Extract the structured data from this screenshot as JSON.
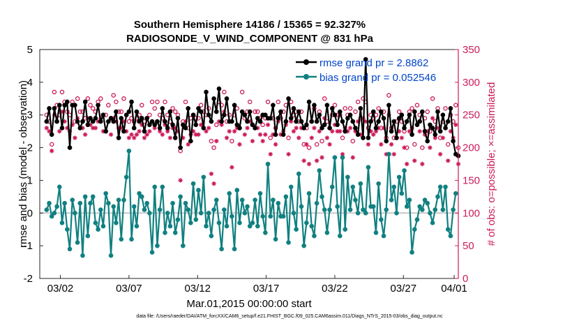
{
  "chart_data": {
    "type": "line",
    "title": "Southern Hemisphere 14186 / 15365 = 92.327%",
    "subtitle": "RADIOSONDE_V_WIND_COMPONENT @ 831 hPa",
    "xlabel": "Mar.01,2015 00:00:00 start",
    "ylabel": "rmse and bias (model - observation)",
    "ylabel_right": "# of obs: o=possible; ×=assimilated",
    "xlim": [
      0.5,
      31
    ],
    "ylim": [
      -2,
      5
    ],
    "ylim_right": [
      0,
      350
    ],
    "x_ticks": [
      {
        "x": 2,
        "label": "03/02"
      },
      {
        "x": 7,
        "label": "03/07"
      },
      {
        "x": 12,
        "label": "03/12"
      },
      {
        "x": 17,
        "label": "03/17"
      },
      {
        "x": 22,
        "label": "03/22"
      },
      {
        "x": 27,
        "label": "03/27"
      },
      {
        "x": 32,
        "label": "04/01"
      }
    ],
    "y_ticks": [
      "-2",
      "-1",
      "0",
      "1",
      "2",
      "3",
      "4",
      "5"
    ],
    "y_ticks_right": [
      "0",
      "50",
      "100",
      "150",
      "200",
      "250",
      "300",
      "350"
    ],
    "colors": {
      "rmse": "#000000",
      "bias": "#118080",
      "obs": "#cc1a5a",
      "zero": "#c8c8c8"
    },
    "legend": [
      {
        "key": "rmse",
        "label": "rmse grand pr = 2.8862"
      },
      {
        "key": "bias",
        "label": "bias grand pr = 0.052546"
      }
    ],
    "series": [
      {
        "name": "rmse",
        "values": [
          2.8,
          3.2,
          2.4,
          3.2,
          2.8,
          3.3,
          2.6,
          3.3,
          3.4,
          2.0,
          3.3,
          3.3,
          2.8,
          2.6,
          2.8,
          3.4,
          2.7,
          2.9,
          2.8,
          2.9,
          3.3,
          2.8,
          3.0,
          2.5,
          2.8,
          2.9,
          2.8,
          3.1,
          2.3,
          2.9,
          2.5,
          3.0,
          3.1,
          3.4,
          2.6,
          3.1,
          2.8,
          2.9,
          2.5,
          2.9,
          2.7,
          2.8,
          2.7,
          2.8,
          2.6,
          3.2,
          2.8,
          2.6,
          3.1,
          2.7,
          2.3,
          2.9,
          2.0,
          2.7,
          2.6,
          3.2,
          2.2,
          3.0,
          2.7,
          3.2,
          3.1,
          2.6,
          3.7,
          3.0,
          2.8,
          3.5,
          3.1,
          3.8,
          2.8,
          3.0,
          3.5,
          2.8,
          2.8,
          3.3,
          2.7,
          2.6,
          3.1,
          3.0,
          2.8,
          3.1,
          2.7,
          2.6,
          2.9,
          2.8,
          3.0,
          3.0,
          2.9,
          2.9,
          3.3,
          2.4,
          2.9,
          3.1,
          2.4,
          2.8,
          3.5,
          2.9,
          3.2,
          2.8,
          3.1,
          2.8,
          2.6,
          2.7,
          3.4,
          2.8,
          3.3,
          2.8,
          3.0,
          2.6,
          2.7,
          3.3,
          2.6,
          3.2,
          3.0,
          2.7,
          3.1,
          2.8,
          2.5,
          2.9,
          3.0,
          2.8,
          2.6,
          2.4,
          3.2,
          2.3,
          4.7,
          2.3,
          2.8,
          3.1,
          2.6,
          2.8,
          3.1,
          2.9,
          2.2,
          3.3,
          2.5,
          2.8,
          2.3,
          2.9,
          3.0,
          2.6,
          2.8,
          3.0,
          2.4,
          3.1,
          2.7,
          2.8,
          3.1,
          2.5,
          2.2,
          2.7,
          2.6,
          2.4,
          3.1,
          2.5,
          3.0,
          2.6,
          2.8,
          3.2,
          2.2,
          1.8,
          1.75
        ]
      },
      {
        "name": "bias",
        "values": [
          0.1,
          0.3,
          -0.1,
          0.0,
          0.2,
          0.8,
          -0.3,
          0.3,
          -0.5,
          -1.1,
          0.4,
          0.0,
          -0.9,
          0.3,
          -1.3,
          0.5,
          -0.7,
          0.3,
          0.5,
          -0.3,
          -0.5,
          0.1,
          -0.4,
          0.6,
          0.3,
          -1.3,
          0.2,
          -0.3,
          0.4,
          -0.8,
          0.4,
          1.1,
          1.9,
          -0.8,
          0.2,
          -0.4,
          0.6,
          0.5,
          0.1,
          0.3,
          0.0,
          -1.2,
          0.8,
          -1.0,
          0.1,
          0.8,
          -0.6,
          0.0,
          -0.4,
          0.3,
          -0.6,
          -0.2,
          0.5,
          -1.0,
          0.3,
          0.1,
          -0.3,
          0.9,
          -0.2,
          0.7,
          0.0,
          1.1,
          -0.4,
          0.0,
          -0.7,
          0.1,
          0.4,
          -0.3,
          -1.1,
          0.1,
          -0.4,
          0.6,
          -0.1,
          -1.1,
          0.7,
          -0.3,
          0.4,
          0.0,
          0.2,
          -0.4,
          -0.3,
          0.4,
          -0.4,
          0.6,
          -0.1,
          -0.6,
          1.5,
          -0.1,
          0.4,
          -0.8,
          0.3,
          -0.1,
          -0.1,
          0.5,
          -0.9,
          0.8,
          0.0,
          -0.5,
          1.2,
          0.2,
          -1.0,
          -0.3,
          0.6,
          -0.4,
          -0.7,
          0.3,
          1.3,
          0.5,
          0.1,
          -0.6,
          0.1,
          0.8,
          1.7,
          0.2,
          -0.7,
          1.7,
          -0.5,
          1.1,
          0.1,
          0.8,
          0.4,
          0.0,
          0.9,
          0.1,
          0.0,
          1.4,
          0.2,
          0.2,
          -0.6,
          0.9,
          -0.2,
          -0.7,
          0.1,
          1.8,
          0.4,
          0.8,
          0.0,
          1.1,
          0.6,
          1.3,
          0.2,
          0.4,
          -1.2,
          -0.5,
          -0.2,
          0.2,
          0.1,
          0.4,
          0.3,
          0.0,
          -0.3,
          0.1,
          0.5,
          0.8,
          0.1,
          0.8,
          -0.5,
          -0.7,
          0.1,
          0.6
        ]
      },
      {
        "name": "obs_possible",
        "values": [
          250,
          240,
          205,
          285,
          265,
          250,
          285,
          270,
          255,
          250,
          270,
          240,
          275,
          255,
          255,
          245,
          275,
          265,
          260,
          255,
          270,
          275,
          250,
          250,
          265,
          245,
          280,
          270,
          255,
          255,
          275,
          250,
          240,
          245,
          240,
          245,
          250,
          265,
          240,
          245,
          250,
          270,
          260,
          270,
          250,
          245,
          270,
          250,
          240,
          260,
          255,
          250,
          195,
          240,
          270,
          230,
          245,
          250,
          245,
          245,
          265,
          255,
          250,
          260,
          210,
          200,
          235,
          270,
          265,
          285,
          240,
          250,
          210,
          250,
          260,
          230,
          285,
          245,
          255,
          270,
          235,
          255,
          255,
          245,
          235,
          245,
          270,
          215,
          245,
          230,
          270,
          245,
          255,
          265,
          215,
          270,
          250,
          255,
          240,
          255,
          205,
          230,
          200,
          240,
          260,
          205,
          255,
          210,
          275,
          240,
          230,
          250,
          265,
          250,
          250,
          215,
          260,
          250,
          260,
          210,
          255,
          270,
          245,
          275,
          270,
          230,
          250,
          245,
          250,
          260,
          230,
          255,
          215,
          280,
          230,
          215,
          240,
          255,
          240,
          225,
          200,
          255,
          260,
          205,
          265,
          250,
          200,
          245,
          255,
          225,
          275,
          240,
          260,
          215,
          240,
          260,
          205,
          250,
          240,
          265,
          200
        ]
      },
      {
        "name": "obs_assimilated",
        "values": [
          230,
          225,
          195,
          250,
          240,
          225,
          255,
          240,
          230,
          225,
          235,
          215,
          245,
          230,
          230,
          220,
          245,
          235,
          230,
          230,
          240,
          245,
          225,
          225,
          240,
          220,
          245,
          240,
          230,
          230,
          240,
          225,
          215,
          220,
          215,
          220,
          225,
          235,
          215,
          220,
          225,
          240,
          230,
          240,
          225,
          220,
          235,
          225,
          215,
          230,
          230,
          225,
          150,
          215,
          240,
          205,
          220,
          225,
          220,
          220,
          235,
          230,
          225,
          230,
          160,
          145,
          210,
          240,
          235,
          255,
          215,
          225,
          170,
          225,
          230,
          205,
          255,
          220,
          230,
          240,
          210,
          230,
          230,
          220,
          210,
          220,
          235,
          190,
          220,
          205,
          240,
          220,
          225,
          235,
          190,
          240,
          225,
          230,
          215,
          230,
          180,
          205,
          175,
          215,
          230,
          180,
          225,
          185,
          245,
          215,
          205,
          225,
          235,
          225,
          225,
          190,
          230,
          225,
          230,
          185,
          225,
          240,
          220,
          245,
          240,
          205,
          225,
          220,
          225,
          230,
          205,
          230,
          190,
          250,
          205,
          190,
          215,
          225,
          215,
          200,
          175,
          225,
          230,
          180,
          235,
          225,
          175,
          220,
          225,
          200,
          245,
          215,
          230,
          190,
          215,
          230,
          180,
          225,
          215,
          235,
          175
        ]
      }
    ]
  },
  "footer": "data file: /Users/raeder/DAI/ATM_forcXX/CAM6_setup/f.e21.FHIST_BGC.f09_025.CAM6assim.011/Diags_NTrS_2015-03/obs_diag_output.nc"
}
